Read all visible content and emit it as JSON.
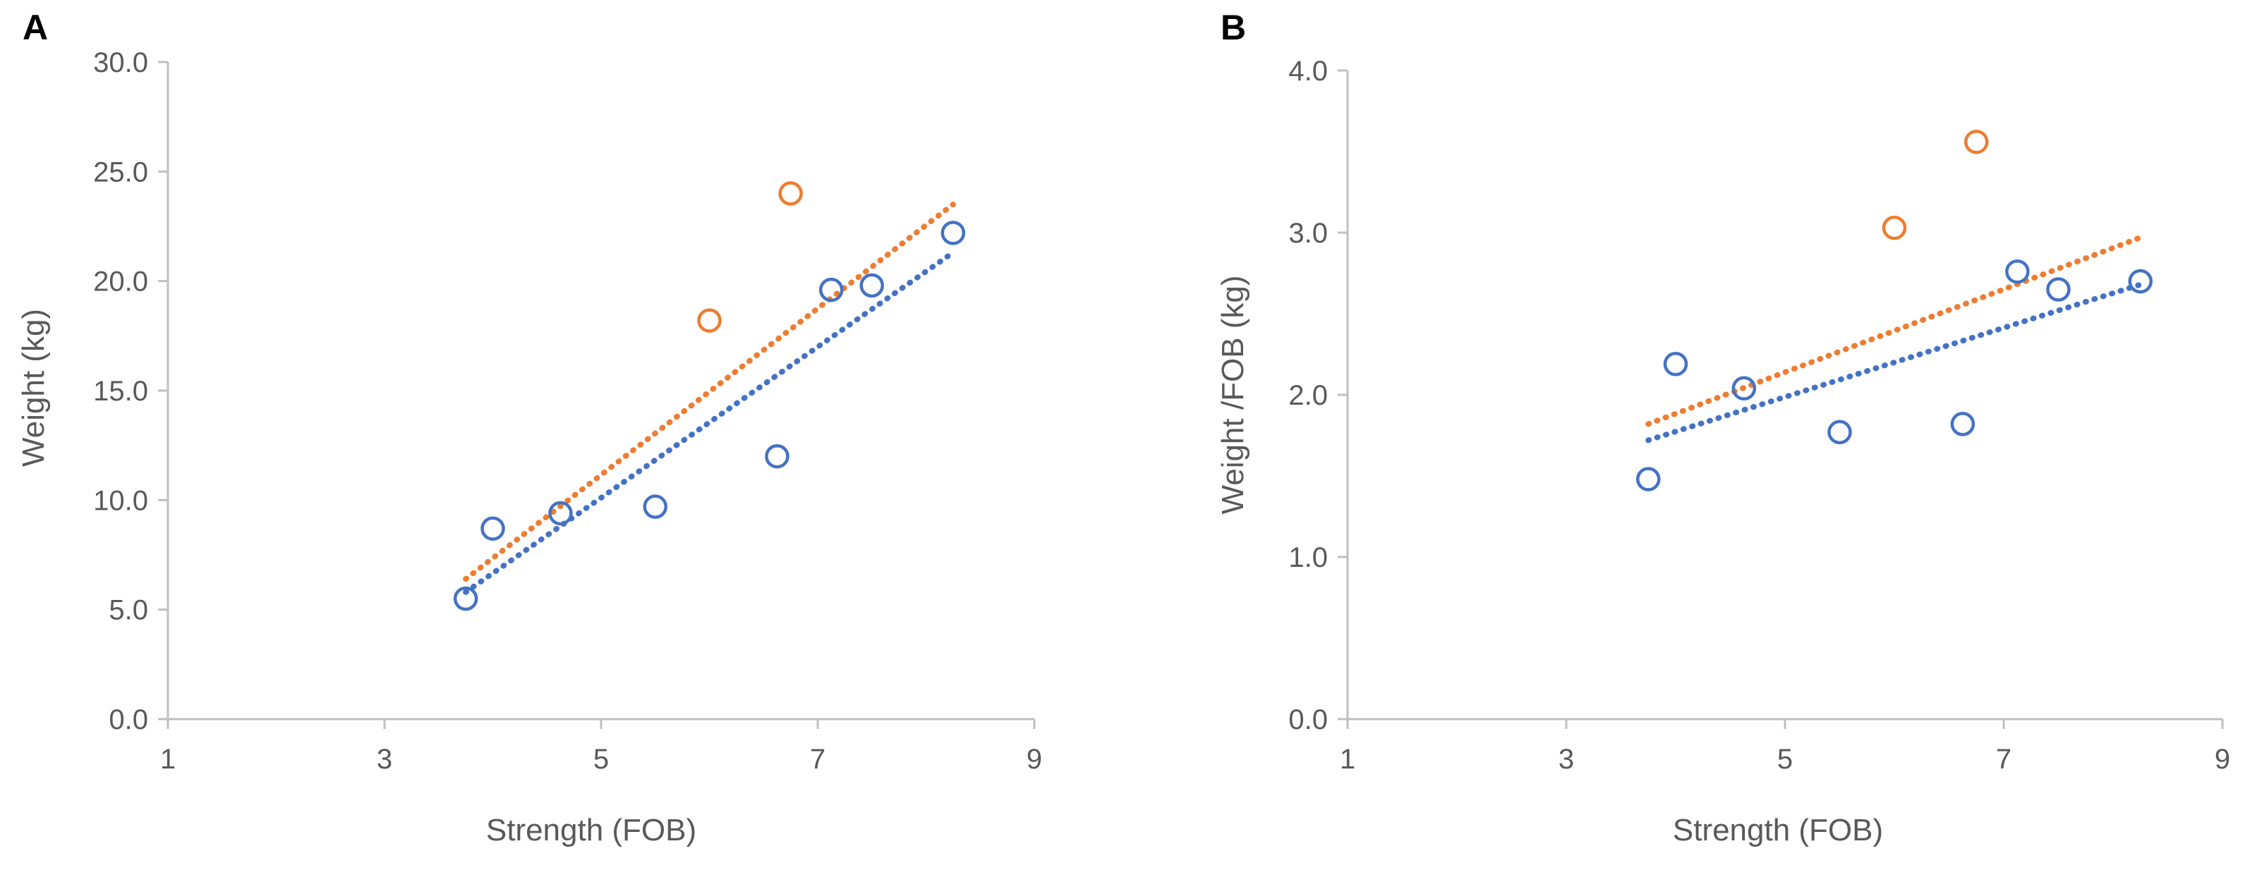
{
  "colors": {
    "blue": "#4472C4",
    "orange": "#ED7D31",
    "axis": "#BFBFBF",
    "text": "#595959"
  },
  "chart_data": [
    {
      "panel": "A",
      "type": "scatter",
      "xlabel": "Strength (FOB)",
      "ylabel": "Weight (kg)",
      "xlim": [
        1,
        9
      ],
      "ylim": [
        0,
        30
      ],
      "xticks": [
        1,
        3,
        5,
        7,
        9
      ],
      "yticks": [
        0,
        5,
        10,
        15,
        20,
        25,
        30
      ],
      "xtick_labels": [
        "1",
        "3",
        "5",
        "7",
        "9"
      ],
      "ytick_labels": [
        "0.0",
        "5.0",
        "10.0",
        "15.0",
        "20.0",
        "25.0",
        "30.0"
      ],
      "grid": false,
      "series": [
        {
          "name": "blue",
          "color": "#4472C4",
          "points": [
            [
              3.75,
              5.5
            ],
            [
              4.0,
              8.7
            ],
            [
              4.625,
              9.4
            ],
            [
              5.5,
              9.7
            ],
            [
              6.625,
              12.0
            ],
            [
              7.125,
              19.6
            ],
            [
              7.5,
              19.8
            ],
            [
              8.25,
              22.2
            ]
          ],
          "trendline": [
            [
              3.75,
              5.8
            ],
            [
              8.25,
              21.3
            ]
          ]
        },
        {
          "name": "orange",
          "color": "#ED7D31",
          "points": [
            [
              6.0,
              18.2
            ],
            [
              6.75,
              24.0
            ]
          ],
          "trendline": [
            [
              3.75,
              6.4
            ],
            [
              8.25,
              23.5
            ]
          ]
        }
      ]
    },
    {
      "panel": "B",
      "type": "scatter",
      "xlabel": "Strength (FOB)",
      "ylabel": "Weight /FOB (kg)",
      "xlim": [
        1,
        9
      ],
      "ylim": [
        0,
        4
      ],
      "xticks": [
        1,
        3,
        5,
        7,
        9
      ],
      "yticks": [
        0,
        1,
        2,
        3,
        4
      ],
      "xtick_labels": [
        "1",
        "3",
        "5",
        "7",
        "9"
      ],
      "ytick_labels": [
        "0.0",
        "1.0",
        "2.0",
        "3.0",
        "4.0"
      ],
      "grid": false,
      "series": [
        {
          "name": "blue",
          "color": "#4472C4",
          "points": [
            [
              3.75,
              1.48
            ],
            [
              4.0,
              2.19
            ],
            [
              4.625,
              2.04
            ],
            [
              5.5,
              1.77
            ],
            [
              6.625,
              1.82
            ],
            [
              7.125,
              2.76
            ],
            [
              7.5,
              2.65
            ],
            [
              8.25,
              2.7
            ]
          ],
          "trendline": [
            [
              3.75,
              1.72
            ],
            [
              8.25,
              2.68
            ]
          ]
        },
        {
          "name": "orange",
          "color": "#ED7D31",
          "points": [
            [
              6.0,
              3.03
            ],
            [
              6.75,
              3.56
            ]
          ],
          "trendline": [
            [
              3.75,
              1.82
            ],
            [
              8.25,
              2.97
            ]
          ]
        }
      ]
    }
  ]
}
